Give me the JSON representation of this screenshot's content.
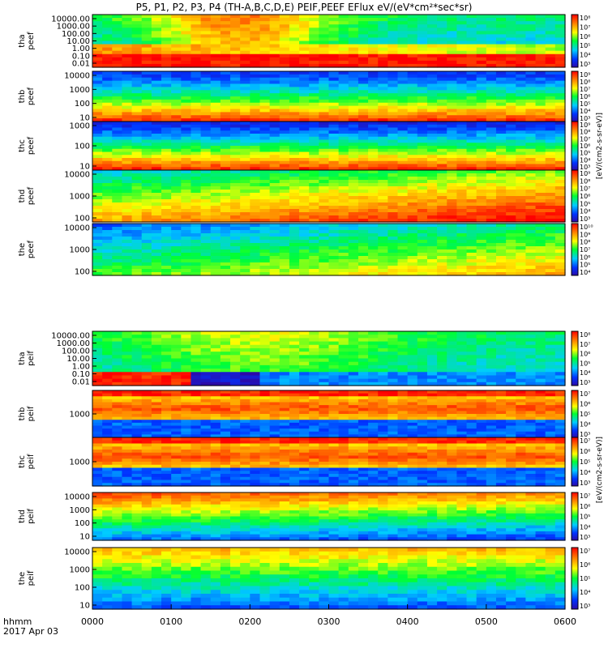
{
  "title": "P5, P1, P2, P3, P4 (TH-A,B,C,D,E) PEIF,PEEF EFlux eV/(eV*cm²*sec*sr)",
  "footer": {
    "time_label": "hhmm",
    "date_label": "2017 Apr 03"
  },
  "x_ticks": [
    "0000",
    "0100",
    "0200",
    "0300",
    "0400",
    "0500",
    "0600"
  ],
  "colorbar_units": "[eV/(cm2-s-sr-eV)]",
  "colors": {
    "palette_low": "#3300cc",
    "palette_mid": "#00ff33",
    "palette_high": "#ff0000"
  },
  "chart_data": {
    "type": "heatmap",
    "x_range_hhmm": [
      "0000",
      "0600"
    ],
    "x_unit": "hhmm",
    "panels": [
      {
        "name": "tha peef",
        "ylabel": [
          "tha",
          "peef"
        ],
        "log_y": true,
        "y_ticks": [
          "10000.00",
          "1000.00",
          "100.00",
          "10.00",
          "1.00",
          "0.10",
          "0.01"
        ],
        "cb_ticks": [
          "10⁸",
          "10⁷",
          "10⁶",
          "10⁵",
          "10⁴",
          "10³"
        ]
      },
      {
        "name": "thb peef",
        "ylabel": [
          "thb",
          "peef"
        ],
        "log_y": true,
        "y_ticks": [
          "10000",
          "1000",
          "100",
          "10"
        ],
        "cb_ticks": [
          "10⁹",
          "10⁸",
          "10⁷",
          "10⁶",
          "10⁵",
          "10⁴",
          "10³"
        ]
      },
      {
        "name": "thc peef",
        "ylabel": [
          "thc",
          "peef"
        ],
        "log_y": true,
        "y_ticks": [
          "1000",
          "100",
          "10"
        ],
        "cb_ticks": [
          "10⁹",
          "10⁸",
          "10⁷",
          "10⁶",
          "10⁵",
          "10⁴",
          "10³"
        ]
      },
      {
        "name": "thd peef",
        "ylabel": [
          "thd",
          "peef"
        ],
        "log_y": true,
        "y_ticks": [
          "10000",
          "1000",
          "100"
        ],
        "cb_ticks": [
          "10⁹",
          "10⁸",
          "10⁷",
          "10⁶",
          "10⁵",
          "10⁴",
          "10³"
        ]
      },
      {
        "name": "the peef",
        "ylabel": [
          "the",
          "peef"
        ],
        "log_y": true,
        "y_ticks": [
          "10000",
          "1000",
          "100"
        ],
        "cb_ticks": [
          "10¹⁰",
          "10⁹",
          "10⁸",
          "10⁷",
          "10⁶",
          "10⁵",
          "10⁴"
        ]
      },
      {
        "name": "tha peif",
        "ylabel": [
          "tha",
          "peif"
        ],
        "log_y": true,
        "y_ticks": [
          "10000.00",
          "1000.00",
          "100.00",
          "10.00",
          "1.00",
          "0.10",
          "0.01"
        ],
        "cb_ticks": [
          "10⁸",
          "10⁷",
          "10⁶",
          "10⁵",
          "10⁴",
          "10³"
        ]
      },
      {
        "name": "thb peif",
        "ylabel": [
          "thb",
          "peif"
        ],
        "log_y": true,
        "y_ticks": [
          "1000"
        ],
        "cb_ticks": [
          "10⁷",
          "10⁶",
          "10⁵",
          "10⁴",
          "10³"
        ]
      },
      {
        "name": "thc peif",
        "ylabel": [
          "thc",
          "peif"
        ],
        "log_y": true,
        "y_ticks": [
          "1000"
        ],
        "cb_ticks": [
          "10⁷",
          "10⁶",
          "10⁵",
          "10⁴",
          "10³"
        ]
      },
      {
        "name": "thd peif",
        "ylabel": [
          "thd",
          "peif"
        ],
        "log_y": true,
        "y_ticks": [
          "10000",
          "1000",
          "100",
          "10"
        ],
        "cb_ticks": [
          "10⁷",
          "10⁶",
          "10⁵",
          "10⁴",
          "10³"
        ]
      },
      {
        "name": "the peif",
        "ylabel": [
          "the",
          "peif"
        ],
        "log_y": true,
        "y_ticks": [
          "10000",
          "1000",
          "100",
          "10"
        ],
        "cb_ticks": [
          "10⁷",
          "10⁶",
          "10⁵",
          "10⁴",
          "10³"
        ]
      }
    ]
  }
}
